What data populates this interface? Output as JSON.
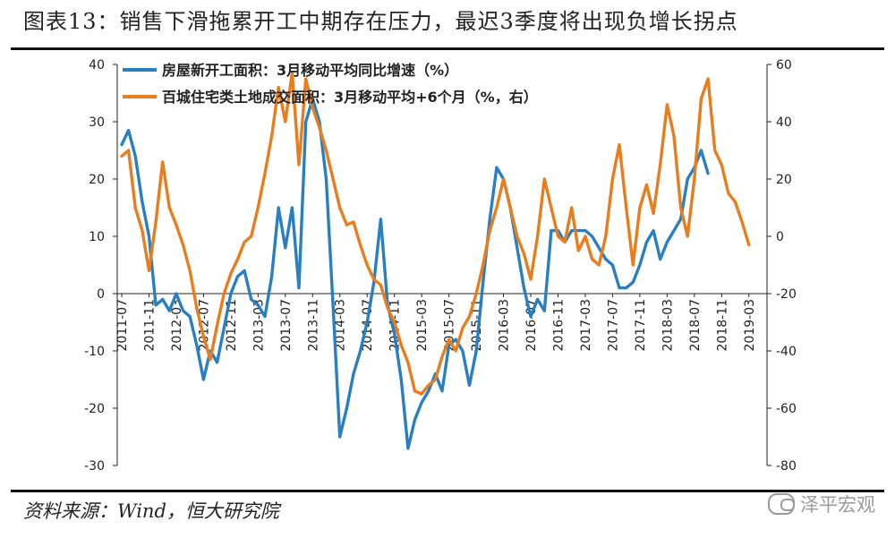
{
  "header": {
    "title": "图表13：销售下滑拖累开工中期存在压力，最迟3季度将出现负增长拐点"
  },
  "footer": {
    "source": "资料来源：Wind，恒大研究院",
    "watermark": "泽平宏观"
  },
  "colors": {
    "blue": "#2a7fc0",
    "orange": "#e87d1e",
    "axis": "#222222"
  },
  "chart_data": {
    "type": "line",
    "title": "图表13：销售下滑拖累开工中期存在压力，最迟3季度将出现负增长拐点",
    "legend_placement": "top",
    "grid": false,
    "y_left": {
      "min": -30,
      "max": 40,
      "ticks": [
        40,
        30,
        20,
        10,
        0,
        -10,
        -20,
        -30
      ]
    },
    "y_right": {
      "min": -80,
      "max": 60,
      "ticks": [
        60,
        40,
        20,
        0,
        -20,
        -40,
        -60,
        -80
      ]
    },
    "x_range": [
      "2011-07",
      "2019-05"
    ],
    "x_tick_labels": [
      "2011-07",
      "2011-11",
      "2012-03",
      "2012-07",
      "2012-11",
      "2013-03",
      "2013-07",
      "2013-11",
      "2014-03",
      "2014-07",
      "2014-11",
      "2015-03",
      "2015-07",
      "2015-11",
      "2016-03",
      "2016-07",
      "2016-11",
      "2017-03",
      "2017-07",
      "2017-11",
      "2018-03",
      "2018-07",
      "2018-11",
      "2019-03"
    ],
    "series": [
      {
        "name": "房屋新开工面积：3月移动平均同比增速（%）",
        "axis": "left",
        "color": "#2a7fc0",
        "points": [
          [
            "2011-07",
            26
          ],
          [
            "2011-08",
            28.5
          ],
          [
            "2011-09",
            24
          ],
          [
            "2011-10",
            16
          ],
          [
            "2011-11",
            10
          ],
          [
            "2011-12",
            -2
          ],
          [
            "2012-01",
            -1
          ],
          [
            "2012-02",
            -3
          ],
          [
            "2012-03",
            0
          ],
          [
            "2012-04",
            -3
          ],
          [
            "2012-05",
            -4
          ],
          [
            "2012-06",
            -9
          ],
          [
            "2012-07",
            -15
          ],
          [
            "2012-08",
            -10
          ],
          [
            "2012-09",
            -12
          ],
          [
            "2012-10",
            -6
          ],
          [
            "2012-11",
            0
          ],
          [
            "2012-12",
            3
          ],
          [
            "2013-01",
            4
          ],
          [
            "2013-02",
            -1
          ],
          [
            "2013-03",
            -2
          ],
          [
            "2013-04",
            -4
          ],
          [
            "2013-05",
            3
          ],
          [
            "2013-06",
            15
          ],
          [
            "2013-07",
            8
          ],
          [
            "2013-08",
            15
          ],
          [
            "2013-09",
            1
          ],
          [
            "2013-10",
            30
          ],
          [
            "2013-11",
            34
          ],
          [
            "2013-12",
            30
          ],
          [
            "2014-01",
            20
          ],
          [
            "2014-02",
            -2
          ],
          [
            "2014-03",
            -25
          ],
          [
            "2014-04",
            -20
          ],
          [
            "2014-05",
            -14
          ],
          [
            "2014-06",
            -10
          ],
          [
            "2014-07",
            -5
          ],
          [
            "2014-08",
            2
          ],
          [
            "2014-09",
            13
          ],
          [
            "2014-10",
            -2
          ],
          [
            "2014-11",
            -7
          ],
          [
            "2014-12",
            -15
          ],
          [
            "2015-01",
            -27
          ],
          [
            "2015-02",
            -22
          ],
          [
            "2015-03",
            -19
          ],
          [
            "2015-04",
            -17
          ],
          [
            "2015-05",
            -14
          ],
          [
            "2015-06",
            -17
          ],
          [
            "2015-07",
            -9
          ],
          [
            "2015-08",
            -8
          ],
          [
            "2015-09",
            -10
          ],
          [
            "2015-10",
            -16
          ],
          [
            "2015-11",
            -10
          ],
          [
            "2015-12",
            2
          ],
          [
            "2016-01",
            13
          ],
          [
            "2016-02",
            22
          ],
          [
            "2016-03",
            20
          ],
          [
            "2016-04",
            15
          ],
          [
            "2016-05",
            8
          ],
          [
            "2016-06",
            1
          ],
          [
            "2016-07",
            -4
          ],
          [
            "2016-08",
            -1
          ],
          [
            "2016-09",
            -3
          ],
          [
            "2016-10",
            11
          ],
          [
            "2016-11",
            11
          ],
          [
            "2016-12",
            9
          ],
          [
            "2017-01",
            11
          ],
          [
            "2017-02",
            11
          ],
          [
            "2017-03",
            11
          ],
          [
            "2017-04",
            10
          ],
          [
            "2017-05",
            8
          ],
          [
            "2017-06",
            6
          ],
          [
            "2017-07",
            5
          ],
          [
            "2017-08",
            1
          ],
          [
            "2017-09",
            1
          ],
          [
            "2017-10",
            2
          ],
          [
            "2017-11",
            5
          ],
          [
            "2017-12",
            9
          ],
          [
            "2018-01",
            11
          ],
          [
            "2018-02",
            6
          ],
          [
            "2018-03",
            9
          ],
          [
            "2018-04",
            11
          ],
          [
            "2018-05",
            13
          ],
          [
            "2018-06",
            20
          ],
          [
            "2018-07",
            22
          ],
          [
            "2018-08",
            25
          ],
          [
            "2018-09",
            21
          ]
        ]
      },
      {
        "name": "百城住宅类土地成交面积：3月移动平均+6个月（%，右）",
        "axis": "right",
        "color": "#e87d1e",
        "points": [
          [
            "2011-07",
            28
          ],
          [
            "2011-08",
            30
          ],
          [
            "2011-09",
            10
          ],
          [
            "2011-10",
            2
          ],
          [
            "2011-11",
            -12
          ],
          [
            "2011-12",
            5
          ],
          [
            "2012-01",
            26
          ],
          [
            "2012-02",
            10
          ],
          [
            "2012-03",
            4
          ],
          [
            "2012-04",
            -3
          ],
          [
            "2012-05",
            -12
          ],
          [
            "2012-06",
            -25
          ],
          [
            "2012-07",
            -35
          ],
          [
            "2012-08",
            -43
          ],
          [
            "2012-09",
            -31
          ],
          [
            "2012-10",
            -20
          ],
          [
            "2012-11",
            -13
          ],
          [
            "2012-12",
            -8
          ],
          [
            "2013-01",
            -2
          ],
          [
            "2013-02",
            0
          ],
          [
            "2013-03",
            10
          ],
          [
            "2013-04",
            22
          ],
          [
            "2013-05",
            35
          ],
          [
            "2013-06",
            52
          ],
          [
            "2013-07",
            40
          ],
          [
            "2013-08",
            57
          ],
          [
            "2013-09",
            25
          ],
          [
            "2013-10",
            55
          ],
          [
            "2013-11",
            45
          ],
          [
            "2013-12",
            38
          ],
          [
            "2014-01",
            30
          ],
          [
            "2014-02",
            20
          ],
          [
            "2014-03",
            10
          ],
          [
            "2014-04",
            4
          ],
          [
            "2014-05",
            5
          ],
          [
            "2014-06",
            -3
          ],
          [
            "2014-07",
            -10
          ],
          [
            "2014-08",
            -15
          ],
          [
            "2014-09",
            -17
          ],
          [
            "2014-10",
            -25
          ],
          [
            "2014-11",
            -30
          ],
          [
            "2014-12",
            -38
          ],
          [
            "2015-01",
            -44
          ],
          [
            "2015-02",
            -54
          ],
          [
            "2015-03",
            -55
          ],
          [
            "2015-04",
            -52
          ],
          [
            "2015-05",
            -50
          ],
          [
            "2015-06",
            -42
          ],
          [
            "2015-07",
            -36
          ],
          [
            "2015-08",
            -40
          ],
          [
            "2015-09",
            -32
          ],
          [
            "2015-10",
            -28
          ],
          [
            "2015-11",
            -20
          ],
          [
            "2015-12",
            -10
          ],
          [
            "2016-01",
            2
          ],
          [
            "2016-02",
            10
          ],
          [
            "2016-03",
            20
          ],
          [
            "2016-04",
            10
          ],
          [
            "2016-05",
            0
          ],
          [
            "2016-06",
            -6
          ],
          [
            "2016-07",
            -15
          ],
          [
            "2016-08",
            0
          ],
          [
            "2016-09",
            20
          ],
          [
            "2016-10",
            10
          ],
          [
            "2016-11",
            0
          ],
          [
            "2016-12",
            -2
          ],
          [
            "2017-01",
            10
          ],
          [
            "2017-02",
            -5
          ],
          [
            "2017-03",
            0
          ],
          [
            "2017-04",
            -8
          ],
          [
            "2017-05",
            -10
          ],
          [
            "2017-06",
            0
          ],
          [
            "2017-07",
            20
          ],
          [
            "2017-08",
            32
          ],
          [
            "2017-09",
            10
          ],
          [
            "2017-10",
            -10
          ],
          [
            "2017-11",
            10
          ],
          [
            "2017-12",
            18
          ],
          [
            "2018-01",
            8
          ],
          [
            "2018-02",
            25
          ],
          [
            "2018-03",
            46
          ],
          [
            "2018-04",
            35
          ],
          [
            "2018-05",
            10
          ],
          [
            "2018-06",
            0
          ],
          [
            "2018-07",
            20
          ],
          [
            "2018-08",
            48
          ],
          [
            "2018-09",
            55
          ],
          [
            "2018-10",
            30
          ],
          [
            "2018-11",
            25
          ],
          [
            "2018-12",
            15
          ],
          [
            "2019-01",
            12
          ],
          [
            "2019-02",
            5
          ],
          [
            "2019-03",
            -3
          ]
        ]
      }
    ]
  }
}
